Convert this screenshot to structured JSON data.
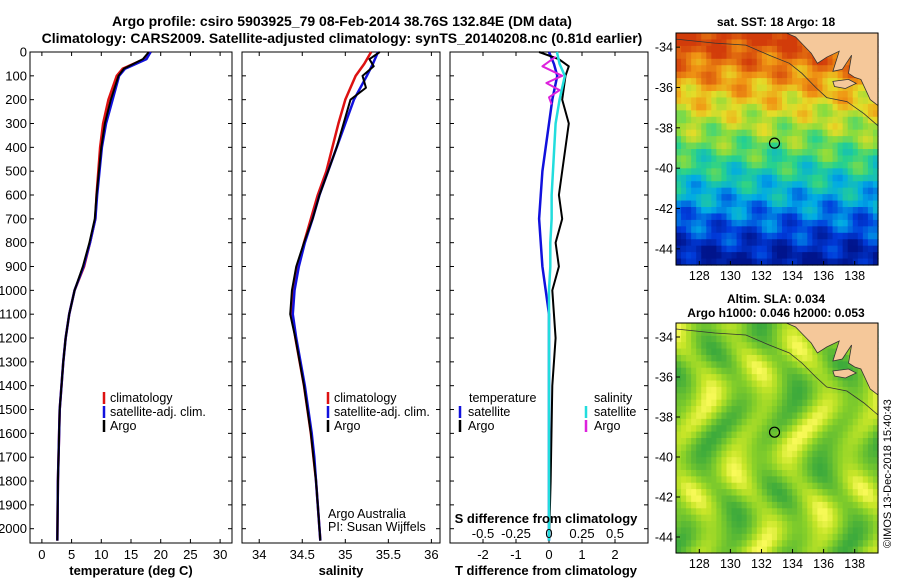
{
  "title_line1": "Argo profile: csiro 5903925_79 08-Feb-2014 38.76S 132.84E (DM data)",
  "title_line2": "Climatology: CARS2009. Satellite-adjusted climatology: synTS_20140208.nc (0.81d earlier)",
  "colors": {
    "climatology": "#dd1111",
    "satellite": "#1111dd",
    "argo": "#000000",
    "sal_satellite": "#22dddd",
    "sal_argo": "#dd22dd",
    "land": "#f5c89a",
    "coast": "#333333"
  },
  "map_sst": {
    "title": "sat. SST: 18 Argo: 18",
    "lon_ticks": [
      "128",
      "130",
      "132",
      "134",
      "136",
      "138"
    ],
    "lat_ticks": [
      "-34",
      "-36",
      "-38",
      "-40",
      "-42",
      "-44"
    ],
    "lon_range": [
      126.5,
      139.5
    ],
    "lat_range": [
      -44.8,
      -33.3
    ],
    "argo_lon": 132.84,
    "argo_lat": -38.76
  },
  "map_sla": {
    "title1": "Altim. SLA: 0.034",
    "title2": "Argo h1000: 0.046 h2000: 0.053",
    "lon_ticks": [
      "128",
      "130",
      "132",
      "134",
      "136",
      "138"
    ],
    "lat_ticks": [
      "-34",
      "-36",
      "-38",
      "-40",
      "-42",
      "-44"
    ],
    "lon_range": [
      126.5,
      139.5
    ],
    "lat_range": [
      -44.8,
      -33.3
    ],
    "argo_lon": 132.84,
    "argo_lat": -38.76
  },
  "credit_argo": "Argo Australia",
  "credit_pi": "PI: Susan Wijffels",
  "imos_stamp": "©IMOS 13-Dec-2018 15:40:43",
  "chart_data": [
    {
      "type": "line",
      "xlabel": "temperature (deg C)",
      "xlim": [
        -2,
        32
      ],
      "ylim": [
        2060,
        0
      ],
      "xticks": [
        "0",
        "5",
        "10",
        "15",
        "20",
        "25",
        "30"
      ],
      "yticks": [
        "0",
        "100",
        "200",
        "300",
        "400",
        "500",
        "600",
        "700",
        "800",
        "900",
        "1000",
        "1100",
        "1200",
        "1300",
        "1400",
        "1500",
        "1600",
        "1700",
        "1800",
        "1900",
        "2000"
      ],
      "legend": [
        "climatology",
        "satellite-adj. clim.",
        "Argo"
      ],
      "series": [
        {
          "name": "climatology",
          "x": [
            18.3,
            17.2,
            13.6,
            12.6,
            11.2,
            10.3,
            9.8,
            9.5,
            9.2,
            9.0,
            8.1,
            7.1,
            5.5,
            4.6,
            4.0,
            3.6,
            3.3,
            3.0,
            2.9,
            2.8,
            2.7,
            2.6
          ],
          "y": [
            0,
            30,
            70,
            100,
            200,
            300,
            400,
            500,
            600,
            700,
            800,
            900,
            1000,
            1100,
            1200,
            1300,
            1400,
            1500,
            1600,
            1700,
            1800,
            2050
          ]
        },
        {
          "name": "satellite-adj. clim.",
          "x": [
            18.3,
            17.6,
            14.0,
            13.0,
            11.9,
            10.8,
            10.1,
            9.7,
            9.3,
            9.0,
            8.1,
            7.0,
            5.5,
            4.6,
            4.0,
            3.6,
            3.3,
            3.0,
            2.9,
            2.8,
            2.7,
            2.6
          ],
          "y": [
            0,
            30,
            70,
            100,
            200,
            300,
            400,
            500,
            600,
            700,
            800,
            900,
            1000,
            1100,
            1200,
            1300,
            1400,
            1500,
            1600,
            1700,
            1800,
            2050
          ]
        },
        {
          "name": "Argo",
          "x": [
            18.0,
            17.0,
            13.8,
            12.9,
            11.6,
            10.6,
            10.0,
            9.6,
            9.2,
            8.9,
            8.0,
            6.9,
            5.5,
            4.6,
            4.0,
            3.6,
            3.3,
            3.0,
            2.9,
            2.8,
            2.7,
            2.6
          ],
          "y": [
            0,
            30,
            70,
            100,
            200,
            300,
            400,
            500,
            600,
            700,
            800,
            900,
            1000,
            1100,
            1200,
            1300,
            1400,
            1500,
            1600,
            1700,
            1800,
            2050
          ]
        }
      ]
    },
    {
      "type": "line",
      "xlabel": "salinity",
      "xlim": [
        33.8,
        36.1
      ],
      "ylim": [
        2060,
        0
      ],
      "xticks": [
        "34",
        "34.5",
        "35",
        "35.5",
        "36"
      ],
      "legend": [
        "climatology",
        "satellite-adj. clim.",
        "Argo"
      ],
      "series": [
        {
          "name": "climatology",
          "x": [
            35.3,
            35.22,
            35.12,
            35.0,
            34.92,
            34.85,
            34.78,
            34.68,
            34.6,
            34.52,
            34.45,
            34.4,
            34.38,
            34.42,
            34.47,
            34.52,
            34.56,
            34.6,
            34.63,
            34.66,
            34.68,
            34.71
          ],
          "y": [
            0,
            50,
            100,
            200,
            300,
            400,
            500,
            600,
            700,
            800,
            900,
            1000,
            1100,
            1200,
            1300,
            1400,
            1500,
            1600,
            1700,
            1800,
            1900,
            2050
          ]
        },
        {
          "name": "satellite-adj. clim.",
          "x": [
            35.38,
            35.32,
            35.25,
            35.1,
            35.0,
            34.9,
            34.8,
            34.7,
            34.62,
            34.53,
            34.46,
            34.41,
            34.39,
            34.43,
            34.48,
            34.53,
            34.57,
            34.61,
            34.64,
            34.66,
            34.68,
            34.71
          ],
          "y": [
            0,
            50,
            100,
            200,
            300,
            400,
            500,
            600,
            700,
            800,
            900,
            1000,
            1100,
            1200,
            1300,
            1400,
            1500,
            1600,
            1700,
            1800,
            1900,
            2050
          ]
        },
        {
          "name": "Argo",
          "x": [
            35.4,
            35.28,
            35.33,
            35.2,
            35.24,
            35.06,
            34.98,
            34.9,
            34.8,
            34.7,
            34.62,
            34.52,
            34.43,
            34.38,
            34.36,
            34.42,
            34.47,
            34.52,
            34.56,
            34.6,
            34.63,
            34.66,
            34.68,
            34.71
          ],
          "y": [
            0,
            30,
            60,
            100,
            150,
            200,
            300,
            400,
            500,
            600,
            700,
            800,
            900,
            1000,
            1100,
            1200,
            1300,
            1400,
            1500,
            1600,
            1700,
            1800,
            1900,
            2050
          ]
        }
      ]
    },
    {
      "type": "line",
      "xlabel": "T difference from climatology",
      "second_xlabel": "S difference from climatology",
      "xlim": [
        -3,
        3
      ],
      "ylim": [
        2060,
        0
      ],
      "xticks": [
        "-2",
        "-1",
        "0",
        "1",
        "2"
      ],
      "s_xticks": [
        "-0.5",
        "-0.25",
        "0",
        "0.25",
        "0.5"
      ],
      "legend_left_title": "temperature",
      "legend_right_title": "salinity",
      "legend": [
        "satellite",
        "Argo",
        "satellite",
        "Argo"
      ],
      "series": [
        {
          "name": "temperature satellite",
          "x": [
            0.0,
            0.15,
            0.25,
            0.1,
            0.0,
            -0.1,
            -0.2,
            -0.25,
            -0.3,
            -0.25,
            -0.2,
            -0.1,
            0.0,
            0.0,
            0.0,
            0.0,
            0.0,
            0.0
          ],
          "y": [
            0,
            50,
            100,
            200,
            300,
            400,
            500,
            600,
            700,
            800,
            900,
            1000,
            1100,
            1200,
            1400,
            1600,
            1800,
            2050
          ]
        },
        {
          "name": "temperature Argo",
          "x": [
            -0.3,
            0.3,
            0.6,
            0.5,
            0.4,
            0.6,
            0.5,
            0.4,
            0.3,
            0.4,
            0.2,
            0.3,
            0.1,
            0.15,
            0.2,
            0.1,
            0.05,
            0.0
          ],
          "y": [
            0,
            30,
            60,
            100,
            200,
            300,
            400,
            500,
            600,
            700,
            800,
            900,
            1000,
            1100,
            1200,
            1400,
            1800,
            2050
          ]
        },
        {
          "name": "salinity satellite",
          "x": [
            0.06,
            0.08,
            0.12,
            0.08,
            0.05,
            0.04,
            0.03,
            0.02,
            0.02,
            0.01,
            0.01,
            0.0,
            0.0,
            0.0,
            0.0,
            0.0
          ],
          "y": [
            0,
            50,
            100,
            200,
            300,
            400,
            500,
            600,
            700,
            800,
            900,
            1000,
            1200,
            1400,
            1800,
            2050
          ]
        },
        {
          "name": "salinity Argo",
          "x": [
            0.05,
            -0.05,
            0.1,
            -0.02,
            0.08,
            0.0,
            0.02
          ],
          "y": [
            20,
            60,
            100,
            130,
            160,
            190,
            220
          ]
        }
      ]
    }
  ]
}
